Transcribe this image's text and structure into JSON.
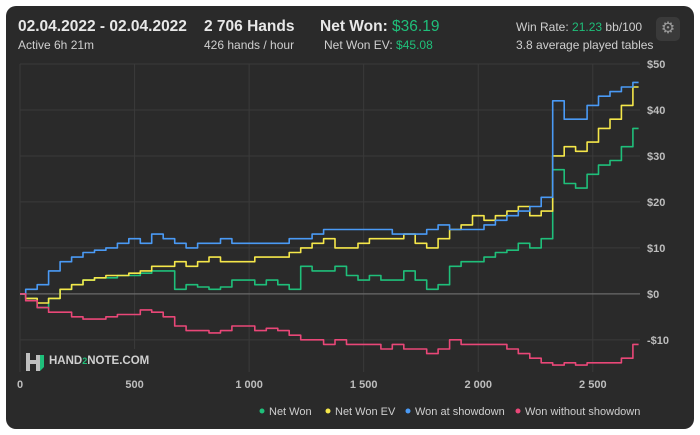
{
  "header": {
    "date_range": "02.04.2022 - 02.04.2022",
    "active_time": "Active 6h 21m",
    "hands_label": "2 706 Hands",
    "hands_per_hour": "426 hands / hour",
    "net_won_label": "Net Won:",
    "net_won_value": "$36.19",
    "net_won_ev_label": "Net Won  EV:",
    "net_won_ev_value": "$45.08",
    "win_rate_label": "Win Rate:",
    "win_rate_value": "21.23",
    "win_rate_unit": "bb/100",
    "avg_tables": "3.8 average played tables"
  },
  "icons": {
    "settings": "gear-icon",
    "logo": "hand2note-logo"
  },
  "logo_text": {
    "part1": "HAND",
    "part2": "2",
    "part3": "NOTE.COM"
  },
  "colors": {
    "net_won": "#1fbf7a",
    "net_won_ev": "#f5e74a",
    "won_showdown": "#4a9af5",
    "won_no_showdown": "#e94778",
    "background": "#2a2a2a"
  },
  "chart_data": {
    "type": "line",
    "xlabel": "",
    "ylabel": "",
    "xlim": [
      0,
      2706
    ],
    "ylim": [
      -17,
      50
    ],
    "x_ticks": [
      0,
      500,
      1000,
      1500,
      2000,
      2500
    ],
    "x_tick_labels": [
      "0",
      "500",
      "1 000",
      "1 500",
      "2 000",
      "2 500"
    ],
    "y_ticks": [
      -10,
      0,
      10,
      20,
      30,
      40,
      50
    ],
    "y_tick_labels": [
      "-$10",
      "$0",
      "$10",
      "$20",
      "$30",
      "$40",
      "$50"
    ],
    "grid": true,
    "legend_position": "bottom-right",
    "series": [
      {
        "name": "Net Won",
        "color": "#1fbf7a",
        "x": [
          0,
          50,
          100,
          150,
          200,
          250,
          300,
          350,
          400,
          450,
          500,
          550,
          600,
          650,
          700,
          750,
          800,
          850,
          900,
          950,
          1000,
          1050,
          1100,
          1150,
          1200,
          1250,
          1300,
          1350,
          1400,
          1450,
          1500,
          1550,
          1600,
          1650,
          1700,
          1750,
          1800,
          1850,
          1900,
          1950,
          2000,
          2050,
          2100,
          2150,
          2200,
          2250,
          2300,
          2350,
          2400,
          2450,
          2500,
          2550,
          2600,
          2650,
          2700
        ],
        "values": [
          0,
          -1,
          -3,
          -1,
          1,
          2,
          3,
          3.5,
          3.5,
          4,
          4,
          4.5,
          5,
          5,
          1,
          2,
          1.5,
          1,
          1.5,
          3,
          3,
          2,
          3,
          2,
          1,
          6,
          5,
          5,
          6,
          4,
          3,
          4,
          3,
          3,
          5,
          3,
          1,
          2,
          6,
          7,
          7,
          8,
          9,
          9.5,
          11,
          10,
          12,
          27,
          24,
          23,
          26,
          28,
          29,
          32,
          36
        ]
      },
      {
        "name": "Net Won  EV",
        "color": "#f5e74a",
        "x": [
          0,
          50,
          100,
          150,
          200,
          250,
          300,
          350,
          400,
          450,
          500,
          550,
          600,
          650,
          700,
          750,
          800,
          850,
          900,
          950,
          1000,
          1050,
          1100,
          1150,
          1200,
          1250,
          1300,
          1350,
          1400,
          1450,
          1500,
          1550,
          1600,
          1650,
          1700,
          1750,
          1800,
          1850,
          1900,
          1950,
          2000,
          2050,
          2100,
          2150,
          2200,
          2250,
          2300,
          2350,
          2400,
          2450,
          2500,
          2550,
          2600,
          2650,
          2700
        ],
        "values": [
          0,
          -1,
          -2,
          -1,
          1,
          2,
          3,
          3.5,
          4,
          4,
          4.5,
          5,
          6,
          6,
          7,
          6,
          7,
          8,
          7,
          7,
          7,
          8,
          8,
          8,
          9,
          10,
          11,
          12,
          10,
          10,
          11,
          12,
          12,
          12,
          13,
          11,
          10,
          12,
          14,
          15,
          17,
          16,
          17,
          18,
          19,
          17,
          18,
          30,
          32,
          31,
          33,
          36,
          38,
          41,
          45
        ]
      },
      {
        "name": "Won at showdown",
        "color": "#4a9af5",
        "x": [
          0,
          50,
          100,
          150,
          200,
          250,
          300,
          350,
          400,
          450,
          500,
          550,
          600,
          650,
          700,
          750,
          800,
          850,
          900,
          950,
          1000,
          1050,
          1100,
          1150,
          1200,
          1250,
          1300,
          1350,
          1400,
          1450,
          1500,
          1550,
          1600,
          1650,
          1700,
          1750,
          1800,
          1850,
          1900,
          1950,
          2000,
          2050,
          2100,
          2150,
          2200,
          2250,
          2300,
          2350,
          2400,
          2450,
          2500,
          2550,
          2600,
          2650,
          2700
        ],
        "values": [
          0,
          1,
          2,
          5,
          7,
          8,
          9,
          9.5,
          10,
          11,
          12,
          11,
          13,
          12,
          11,
          10,
          11,
          11,
          12,
          11,
          11,
          11,
          11,
          11,
          12,
          12,
          13,
          14,
          14,
          14,
          14,
          14,
          14,
          13,
          13,
          13,
          14,
          15,
          14,
          14,
          14,
          15,
          16,
          17,
          18,
          19,
          21,
          42,
          38,
          38,
          41,
          43,
          44,
          45,
          46
        ]
      },
      {
        "name": "Won without showdown",
        "color": "#e94778",
        "x": [
          0,
          50,
          100,
          150,
          200,
          250,
          300,
          350,
          400,
          450,
          500,
          550,
          600,
          650,
          700,
          750,
          800,
          850,
          900,
          950,
          1000,
          1050,
          1100,
          1150,
          1200,
          1250,
          1300,
          1350,
          1400,
          1450,
          1500,
          1550,
          1600,
          1650,
          1700,
          1750,
          1800,
          1850,
          1900,
          1950,
          2000,
          2050,
          2100,
          2150,
          2200,
          2250,
          2300,
          2350,
          2400,
          2450,
          2500,
          2550,
          2600,
          2650,
          2700
        ],
        "values": [
          0,
          -1.5,
          -3,
          -4,
          -4,
          -5,
          -5.5,
          -5.5,
          -5,
          -4.5,
          -4.5,
          -3.5,
          -4,
          -5,
          -7,
          -8,
          -8,
          -8.5,
          -8,
          -7,
          -7,
          -8,
          -7.5,
          -8,
          -9,
          -10,
          -10,
          -11,
          -10,
          -11,
          -11,
          -11,
          -12,
          -11,
          -12,
          -12,
          -13,
          -12,
          -10,
          -11,
          -11,
          -11,
          -11,
          -12,
          -13,
          -14,
          -15,
          -15.5,
          -15,
          -15.5,
          -15,
          -15,
          -15,
          -14,
          -11
        ]
      }
    ]
  }
}
